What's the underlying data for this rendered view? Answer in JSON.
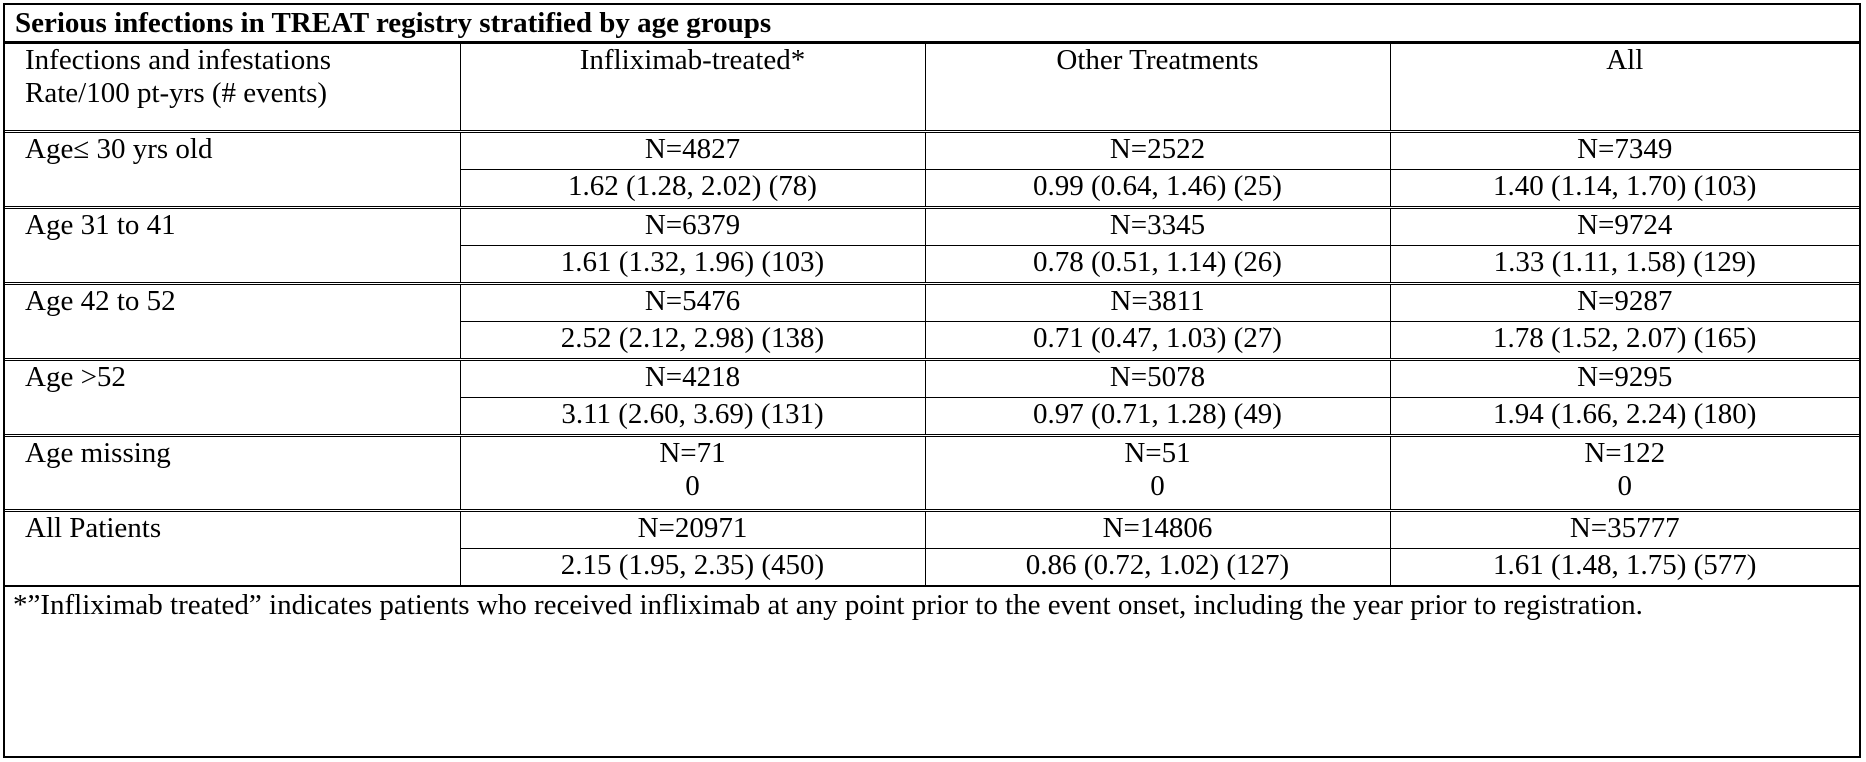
{
  "title": "Serious infections in TREAT registry stratified by age groups",
  "header": {
    "label_line1": "Infections and infestations",
    "label_line2": "Rate/100 pt-yrs (# events)",
    "col1": "Infliximab-treated*",
    "col2": "Other Treatments",
    "col3": "All"
  },
  "rows": [
    {
      "group": "Age≤ 30 yrs old",
      "n": [
        "N=4827",
        "N=2522",
        "N=7349"
      ],
      "rate": [
        "1.62 (1.28, 2.02) (78)",
        "0.99 (0.64, 1.46) (25)",
        "1.40 (1.14, 1.70) (103)"
      ]
    },
    {
      "group": "Age 31 to 41",
      "n": [
        "N=6379",
        "N=3345",
        "N=9724"
      ],
      "rate": [
        "1.61 (1.32, 1.96) (103)",
        "0.78 (0.51, 1.14) (26)",
        "1.33 (1.11, 1.58) (129)"
      ]
    },
    {
      "group": "Age 42 to 52",
      "n": [
        "N=5476",
        "N=3811",
        "N=9287"
      ],
      "rate": [
        "2.52 (2.12, 2.98) (138)",
        "0.71 (0.47, 1.03) (27)",
        "1.78 (1.52, 2.07) (165)"
      ]
    },
    {
      "group": "Age >52",
      "n": [
        "N=4218",
        "N=5078",
        "N=9295"
      ],
      "rate": [
        "3.11 (2.60, 3.69) (131)",
        "0.97 (0.71, 1.28) (49)",
        "1.94 (1.66, 2.24) (180)"
      ]
    },
    {
      "group": "Age missing",
      "n": [
        "N=71",
        "N=51",
        "N=122"
      ],
      "rate": [
        "0",
        "0",
        "0"
      ]
    },
    {
      "group": "All Patients",
      "n": [
        "N=20971",
        "N=14806",
        "N=35777"
      ],
      "rate": [
        "2.15 (1.95, 2.35) (450)",
        "0.86 (0.72, 1.02) (127)",
        "1.61 (1.48, 1.75) (577)"
      ]
    }
  ],
  "footnote": "*”Infliximab treated” indicates patients who received infliximab at any point prior to the event onset, including the year prior to registration."
}
